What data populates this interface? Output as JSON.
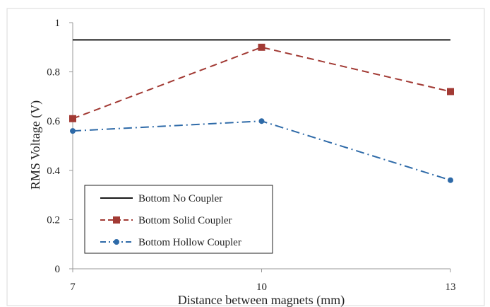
{
  "chart_data": {
    "type": "line",
    "xlabel": "Distance between magnets (mm)",
    "ylabel": "RMS Voltage (V)",
    "x": [
      7,
      10,
      13
    ],
    "xlim": [
      7,
      13
    ],
    "ylim": [
      0,
      1
    ],
    "yticks": [
      0,
      0.2,
      0.4,
      0.6,
      0.8,
      1
    ],
    "yticklabels": [
      "0",
      "0.2",
      "0.4",
      "0.6",
      "0.8",
      "1"
    ],
    "xticklabels": [
      "7",
      "10",
      "13"
    ],
    "grid": false,
    "legend_position": "bottom-left",
    "series": [
      {
        "name": "Bottom No Coupler",
        "values": [
          0.93,
          0.93,
          0.93
        ],
        "color": "#1a1a1a",
        "style": "solid",
        "marker": "none"
      },
      {
        "name": "Bottom Solid Coupler",
        "values": [
          0.61,
          0.9,
          0.72
        ],
        "color": "#a23a34",
        "style": "dashed",
        "marker": "square"
      },
      {
        "name": "Bottom Hollow Coupler",
        "values": [
          0.56,
          0.6,
          0.36
        ],
        "color": "#2e6aa8",
        "style": "dashdot",
        "marker": "circle"
      }
    ]
  }
}
